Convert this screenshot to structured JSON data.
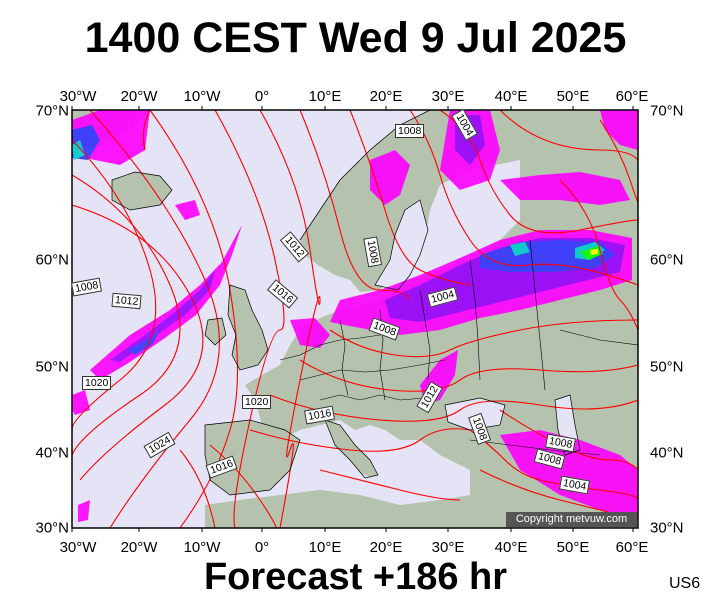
{
  "title": "1400 CEST Wed 9 Jul 2025",
  "subtitle": "Forecast +186 hr",
  "model_code": "US6",
  "copyright": "Copyright metvuw.com",
  "map": {
    "lon_labels": [
      "30°W",
      "20°W",
      "10°W",
      "0°",
      "10°E",
      "20°E",
      "30°E",
      "40°E",
      "50°E",
      "60°E"
    ],
    "lat_labels": [
      "70°N",
      "60°N",
      "50°N",
      "40°N",
      "30°N"
    ],
    "ocean_color": "#e4e4f6",
    "land_color": "#b4c2ae",
    "isobar_color": "#ff0000",
    "rain_colors": [
      "#ff00ff",
      "#9900ff",
      "#3333ff",
      "#00cccc",
      "#00ff00",
      "#ffff00"
    ],
    "isobar_labels": [
      {
        "text": "1008"
      },
      {
        "text": "1004"
      },
      {
        "text": "1012"
      },
      {
        "text": "1008"
      },
      {
        "text": "1016"
      },
      {
        "text": "1012"
      },
      {
        "text": "1008"
      },
      {
        "text": "1004"
      },
      {
        "text": "1008"
      },
      {
        "text": "1020"
      },
      {
        "text": "1020"
      },
      {
        "text": "1016"
      },
      {
        "text": "1012"
      },
      {
        "text": "1024"
      },
      {
        "text": "1008"
      },
      {
        "text": "1016"
      },
      {
        "text": "1008"
      },
      {
        "text": "1008"
      },
      {
        "text": "1004"
      }
    ]
  }
}
